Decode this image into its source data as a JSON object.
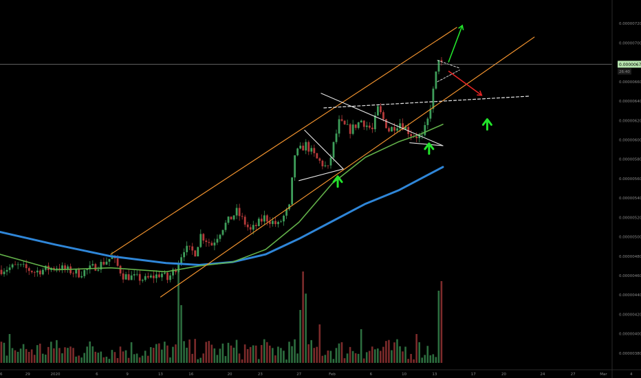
{
  "chart_data": {
    "type": "candlestick",
    "colors": {
      "background": "#000000",
      "up": "#3e9e5a",
      "down": "#b53a3a",
      "channel": "#f0922e",
      "ma_fast": "#63b24a",
      "ma_slow": "#2f86d8",
      "pattern": "#e8e8e8",
      "arrow_green": "#22e42b",
      "arrow_red": "#e62424",
      "price_badge": "#b8e6b0",
      "axis_text": "#8a8a8a"
    },
    "y_axis": {
      "ylim": [
        3.7e-06,
        7.4e-06
      ],
      "ticks": [
        "0.00000720",
        "0.00000700",
        "0.00000680",
        "0.00000660",
        "0.00000640",
        "0.00000620",
        "0.00000600",
        "0.00000580",
        "0.00000560",
        "0.00000540",
        "0.00000520",
        "0.00000500",
        "0.00000480",
        "0.00000460",
        "0.00000440",
        "0.00000420",
        "0.00000400",
        "0.00000380"
      ],
      "tick_values": [
        7.2e-06,
        7e-06,
        6.8e-06,
        6.6e-06,
        6.4e-06,
        6.2e-06,
        6e-06,
        5.8e-06,
        5.6e-06,
        5.4e-06,
        5.2e-06,
        5e-06,
        4.8e-06,
        4.6e-06,
        4.4e-06,
        4.2e-06,
        4e-06,
        3.8e-06
      ]
    },
    "x_axis": {
      "ticks": [
        "26",
        "29",
        "2020",
        "6",
        "9",
        "13",
        "16",
        "20",
        "23",
        "27",
        "Feb",
        "6",
        "10",
        "13",
        "17",
        "20",
        "24",
        "27",
        "Mar",
        "4"
      ],
      "tick_index": [
        0,
        10,
        20,
        35,
        46,
        58,
        69,
        83,
        94,
        108,
        120,
        134,
        146,
        157,
        171,
        182,
        196,
        207,
        218,
        228
      ]
    },
    "current_price": {
      "label": "0.00000678",
      "value": 6.78e-06,
      "countdown": "26:40"
    },
    "candles": {
      "count": 160,
      "path": [
        [
          0,
          4.66e-06
        ],
        [
          6,
          4.7e-06
        ],
        [
          12,
          4.64e-06
        ],
        [
          20,
          4.69e-06
        ],
        [
          28,
          4.62e-06
        ],
        [
          36,
          4.72e-06
        ],
        [
          40,
          4.79e-06
        ],
        [
          44,
          4.6e-06
        ],
        [
          52,
          4.56e-06
        ],
        [
          58,
          4.62e-06
        ],
        [
          60,
          4.56e-06
        ],
        [
          63,
          4.68e-06
        ],
        [
          66,
          4.88e-06
        ],
        [
          70,
          4.84e-06
        ],
        [
          72,
          5.02e-06
        ],
        [
          76,
          4.92e-06
        ],
        [
          80,
          5.1e-06
        ],
        [
          85,
          5.26e-06
        ],
        [
          90,
          5.06e-06
        ],
        [
          95,
          5.2e-06
        ],
        [
          100,
          5.12e-06
        ],
        [
          104,
          5.3e-06
        ],
        [
          106,
          5.85e-06
        ],
        [
          110,
          5.95e-06
        ],
        [
          114,
          5.8e-06
        ],
        [
          118,
          5.7e-06
        ],
        [
          120,
          5.95e-06
        ],
        [
          122,
          6.18e-06
        ],
        [
          126,
          6.1e-06
        ],
        [
          130,
          6.2e-06
        ],
        [
          134,
          6.1e-06
        ],
        [
          136,
          6.32e-06
        ],
        [
          140,
          6.1e-06
        ],
        [
          144,
          6.18e-06
        ],
        [
          148,
          6.06e-06
        ],
        [
          152,
          6.02e-06
        ],
        [
          154,
          6.2e-06
        ],
        [
          156,
          6.5e-06
        ],
        [
          158,
          6.85e-06
        ],
        [
          159,
          6.78e-06
        ]
      ]
    },
    "volume": {
      "count": 160,
      "spikes": [
        [
          3,
          0.3
        ],
        [
          18,
          0.22
        ],
        [
          64,
          0.95
        ],
        [
          65,
          0.6
        ],
        [
          108,
          0.55
        ],
        [
          109,
          0.95
        ],
        [
          110,
          0.72
        ],
        [
          115,
          0.4
        ],
        [
          130,
          0.35
        ],
        [
          150,
          0.3
        ],
        [
          158,
          0.75
        ],
        [
          159,
          0.85
        ]
      ]
    },
    "overlays": {
      "ma_fast": [
        [
          0,
          4.82e-06
        ],
        [
          20,
          4.66e-06
        ],
        [
          40,
          4.68e-06
        ],
        [
          60,
          4.64e-06
        ],
        [
          72,
          4.7e-06
        ],
        [
          84,
          4.74e-06
        ],
        [
          96,
          4.87e-06
        ],
        [
          108,
          5.15e-06
        ],
        [
          120,
          5.55e-06
        ],
        [
          132,
          5.82e-06
        ],
        [
          144,
          5.98e-06
        ],
        [
          152,
          6.06e-06
        ],
        [
          160,
          6.16e-06
        ]
      ],
      "ma_slow": [
        [
          0,
          5.05e-06
        ],
        [
          20,
          4.92e-06
        ],
        [
          40,
          4.8e-06
        ],
        [
          60,
          4.73e-06
        ],
        [
          72,
          4.71e-06
        ],
        [
          84,
          4.74e-06
        ],
        [
          96,
          4.82e-06
        ],
        [
          108,
          4.98e-06
        ],
        [
          120,
          5.16e-06
        ],
        [
          132,
          5.34e-06
        ],
        [
          144,
          5.48e-06
        ],
        [
          152,
          5.6e-06
        ],
        [
          160,
          5.72e-06
        ]
      ],
      "channel_upper": [
        [
          40,
          4.82e-06
        ],
        [
          165,
          7.16e-06
        ]
      ],
      "channel_lower": [
        [
          58,
          4.38e-06
        ],
        [
          193,
          7.06e-06
        ]
      ],
      "dashed_resistance": [
        [
          117,
          6.33e-06
        ],
        [
          191,
          6.45e-06
        ]
      ],
      "triangle_1": [
        [
          [
            110,
            6.1e-06
          ],
          [
            124,
            5.7e-06
          ]
        ],
        [
          [
            108,
            5.58e-06
          ],
          [
            124,
            5.7e-06
          ]
        ]
      ],
      "triangle_2": [
        [
          [
            116,
            6.48e-06
          ],
          [
            160,
            5.94e-06
          ]
        ],
        [
          [
            148,
            5.97e-06
          ],
          [
            160,
            5.94e-06
          ]
        ]
      ],
      "arrows_up": [
        [
          122,
          5.58e-06
        ],
        [
          155,
          5.92e-06
        ],
        [
          176,
          6.17e-06
        ]
      ],
      "green_projection": [
        [
          162,
          6.8e-06
        ],
        [
          167,
          7.18e-06
        ]
      ],
      "red_projection": [
        [
          162,
          6.71e-06
        ],
        [
          174,
          6.46e-06
        ]
      ],
      "small_pattern": [
        [
          [
            158,
            6.6e-06
          ],
          [
            166,
            6.72e-06
          ]
        ],
        [
          [
            158,
            6.82e-06
          ],
          [
            166,
            6.74e-06
          ]
        ]
      ]
    }
  }
}
